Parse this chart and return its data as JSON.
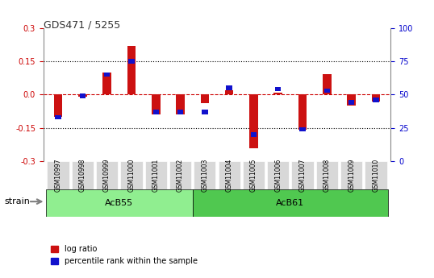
{
  "title": "GDS471 / 5255",
  "samples": [
    "GSM10997",
    "GSM10998",
    "GSM10999",
    "GSM11000",
    "GSM11001",
    "GSM11002",
    "GSM11003",
    "GSM11004",
    "GSM11005",
    "GSM11006",
    "GSM11007",
    "GSM11008",
    "GSM11009",
    "GSM11010"
  ],
  "log_ratio": [
    -0.1,
    -0.01,
    0.1,
    0.22,
    -0.09,
    -0.09,
    -0.04,
    0.02,
    -0.24,
    0.01,
    -0.16,
    0.09,
    -0.05,
    -0.03
  ],
  "percentile_rank": [
    33,
    49,
    65,
    75,
    37,
    37,
    37,
    55,
    20,
    54,
    24,
    53,
    44,
    46
  ],
  "groups": [
    {
      "label": "AcB55",
      "start": 0,
      "end": 5,
      "color": "#90ee90"
    },
    {
      "label": "AcB61",
      "start": 6,
      "end": 13,
      "color": "#50c850"
    }
  ],
  "ylim": [
    -0.3,
    0.3
  ],
  "yticks_left": [
    -0.3,
    -0.15,
    0.0,
    0.15,
    0.3
  ],
  "yticks_right": [
    0,
    25,
    50,
    75,
    100
  ],
  "hlines": [
    0.15,
    -0.15
  ],
  "bar_width": 0.35,
  "log_ratio_color": "#cc1111",
  "percentile_color": "#1111cc",
  "zero_line_color": "#cc0000",
  "bg_color": "#ffffff",
  "plot_bg_color": "#ffffff",
  "grid_color": "#000000",
  "title_color": "#333333",
  "left_label_color": "#cc0000",
  "right_label_color": "#0000cc",
  "strain_label": "strain",
  "legend_items": [
    "log ratio",
    "percentile rank within the sample"
  ]
}
